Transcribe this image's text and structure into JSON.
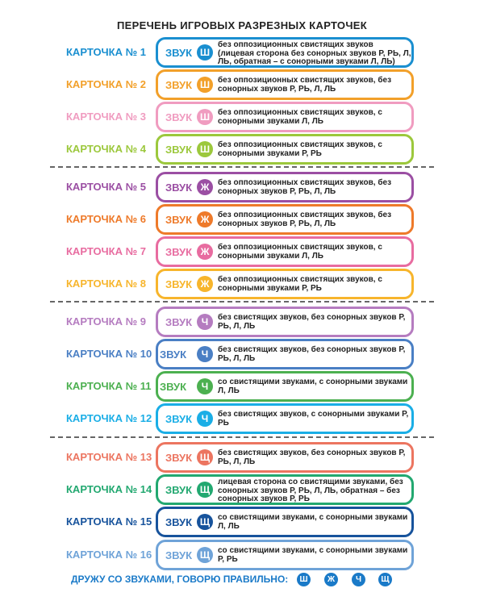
{
  "title": "ПЕРЕЧЕНЬ ИГРОВЫХ РАЗРЕЗНЫХ КАРТОЧЕК",
  "sound_word": "ЗВУК",
  "cards": [
    {
      "label": "КАРТОЧКА № 1",
      "letter": "Ш",
      "color": "#1a8fd0",
      "desc": "без оппозиционных свистящих звуков (лицевая сторона без сонорных звуков Р, РЬ, Л, ЛЬ, обратная – с сонорными звуками Л, ЛЬ)"
    },
    {
      "label": "КАРТОЧКА № 2",
      "letter": "Ш",
      "color": "#f2a02a",
      "desc": "без оппозиционных свистящих звуков, без сонорных звуков Р, РЬ, Л, ЛЬ"
    },
    {
      "label": "КАРТОЧКА № 3",
      "letter": "Ш",
      "color": "#f09cc0",
      "desc": "без оппозиционных свистящих звуков, с сонорными звуками Л, ЛЬ"
    },
    {
      "label": "КАРТОЧКА № 4",
      "letter": "Ш",
      "color": "#9cc83c",
      "desc": "без оппозиционных свистящих звуков, с сонорными звуками Р, РЬ"
    },
    {
      "label": "КАРТОЧКА № 5",
      "letter": "Ж",
      "color": "#9b4fa3",
      "desc": "без оппозиционных свистящих звуков, без сонорных звуков Р, РЬ, Л, ЛЬ"
    },
    {
      "label": "КАРТОЧКА № 6",
      "letter": "Ж",
      "color": "#ee7a2a",
      "desc": "без оппозиционных свистящих звуков, без сонорных звуков Р, РЬ, Л, ЛЬ"
    },
    {
      "label": "КАРТОЧКА № 7",
      "letter": "Ж",
      "color": "#e86ca0",
      "desc": "без оппозиционных свистящих звуков, с сонорными звуками Л, ЛЬ"
    },
    {
      "label": "КАРТОЧКА № 8",
      "letter": "Ж",
      "color": "#f7b52c",
      "desc": "без оппозиционных свистящих звуков, с сонорными звуками Р, РЬ"
    },
    {
      "label": "КАРТОЧКА № 9",
      "letter": "Ч",
      "color": "#b57cc0",
      "desc": "без свистящих звуков, без сонорных звуков Р, РЬ, Л, ЛЬ"
    },
    {
      "label": "КАРТОЧКА № 10",
      "letter": "Ч",
      "color": "#4a7fc4",
      "desc": "без свистящих звуков, без сонорных звуков Р, РЬ, Л, ЛЬ"
    },
    {
      "label": "КАРТОЧКА № 11",
      "letter": "Ч",
      "color": "#4cb050",
      "desc": "со свистящими звуками, с сонорными звуками Л, ЛЬ"
    },
    {
      "label": "КАРТОЧКА № 12",
      "letter": "Ч",
      "color": "#1aaee6",
      "desc": "без свистящих звуков, с сонорными звуками Р, РЬ"
    },
    {
      "label": "КАРТОЧКА № 13",
      "letter": "Щ",
      "color": "#ec7560",
      "desc": "без свистящих звуков, без сонорных звуков Р, РЬ, Л, ЛЬ"
    },
    {
      "label": "КАРТОЧКА № 14",
      "letter": "Щ",
      "color": "#22a870",
      "desc": "лицевая сторона со свистящими звуками, без сонорных звуков Р, РЬ, Л, ЛЬ, обратная – без сонорных звуков Р, РЬ"
    },
    {
      "label": "КАРТОЧКА № 15",
      "letter": "Щ",
      "color": "#17539c",
      "desc": "со свистящими звуками, с сонорными звуками Л, ЛЬ"
    },
    {
      "label": "КАРТОЧКА № 16",
      "letter": "Щ",
      "color": "#6fa3d8",
      "desc": "со свистящими звуками, с сонорными звуками Р, РЬ"
    }
  ],
  "footer": {
    "text": "ДРУЖУ СО ЗВУКАМИ, ГОВОРЮ ПРАВИЛЬНО:",
    "letters": [
      "Ш",
      "Ж",
      "Ч",
      "Щ"
    ],
    "color": "#1a7ac8"
  }
}
